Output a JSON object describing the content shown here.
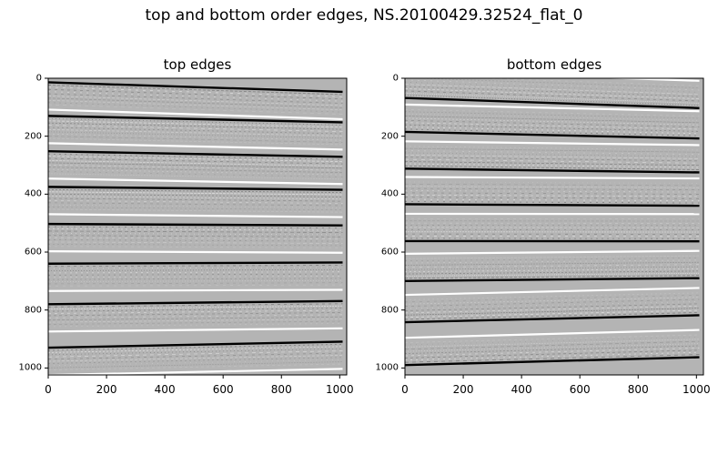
{
  "title": "top and bottom order edges, NS.20100429.32524_flat_0",
  "chart_data": [
    {
      "type": "heatmap",
      "title": "top edges",
      "xlabel": "",
      "ylabel": "",
      "xlim": [
        0,
        1024
      ],
      "ylim": [
        1024,
        0
      ],
      "x_ticks": [
        0,
        200,
        400,
        600,
        800,
        1000
      ],
      "y_ticks": [
        0,
        200,
        400,
        600,
        800,
        1000
      ],
      "colormap": "gray",
      "edges": [
        {
          "y_start": 14,
          "y_end": 47
        },
        {
          "y_start": 130,
          "y_end": 152
        },
        {
          "y_start": 252,
          "y_end": 271
        },
        {
          "y_start": 375,
          "y_end": 385
        },
        {
          "y_start": 503,
          "y_end": 508
        },
        {
          "y_start": 640,
          "y_end": 636
        },
        {
          "y_start": 780,
          "y_end": 769
        },
        {
          "y_start": 930,
          "y_end": 909
        }
      ]
    },
    {
      "type": "heatmap",
      "title": "bottom edges",
      "xlabel": "",
      "ylabel": "",
      "xlim": [
        0,
        1024
      ],
      "ylim": [
        1024,
        0
      ],
      "x_ticks": [
        0,
        200,
        400,
        600,
        800,
        1000
      ],
      "y_ticks": [
        0,
        200,
        400,
        600,
        800,
        1000
      ],
      "colormap": "gray",
      "edges": [
        {
          "y_start": 68,
          "y_end": 103
        },
        {
          "y_start": 185,
          "y_end": 208
        },
        {
          "y_start": 312,
          "y_end": 325
        },
        {
          "y_start": 435,
          "y_end": 440
        },
        {
          "y_start": 562,
          "y_end": 563
        },
        {
          "y_start": 700,
          "y_end": 690
        },
        {
          "y_start": 842,
          "y_end": 818
        },
        {
          "y_start": 990,
          "y_end": 963
        }
      ]
    }
  ]
}
